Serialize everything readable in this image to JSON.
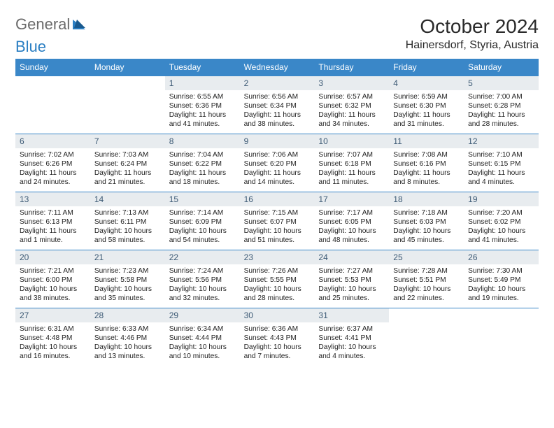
{
  "logo": {
    "general": "General",
    "blue": "Blue"
  },
  "title": "October 2024",
  "location": "Hainersdorf, Styria, Austria",
  "colors": {
    "header_bg": "#3a87c8",
    "header_text": "#ffffff",
    "daynum_bg": "#e8ecef",
    "daynum_text": "#3d5a75",
    "row_border": "#3a87c8",
    "logo_gray": "#6b6b6b",
    "logo_blue": "#2b7fc3"
  },
  "weekdays": [
    "Sunday",
    "Monday",
    "Tuesday",
    "Wednesday",
    "Thursday",
    "Friday",
    "Saturday"
  ],
  "weeks": [
    [
      {
        "day": "",
        "sunrise": "",
        "sunset": "",
        "daylight": ""
      },
      {
        "day": "",
        "sunrise": "",
        "sunset": "",
        "daylight": ""
      },
      {
        "day": "1",
        "sunrise": "Sunrise: 6:55 AM",
        "sunset": "Sunset: 6:36 PM",
        "daylight": "Daylight: 11 hours and 41 minutes."
      },
      {
        "day": "2",
        "sunrise": "Sunrise: 6:56 AM",
        "sunset": "Sunset: 6:34 PM",
        "daylight": "Daylight: 11 hours and 38 minutes."
      },
      {
        "day": "3",
        "sunrise": "Sunrise: 6:57 AM",
        "sunset": "Sunset: 6:32 PM",
        "daylight": "Daylight: 11 hours and 34 minutes."
      },
      {
        "day": "4",
        "sunrise": "Sunrise: 6:59 AM",
        "sunset": "Sunset: 6:30 PM",
        "daylight": "Daylight: 11 hours and 31 minutes."
      },
      {
        "day": "5",
        "sunrise": "Sunrise: 7:00 AM",
        "sunset": "Sunset: 6:28 PM",
        "daylight": "Daylight: 11 hours and 28 minutes."
      }
    ],
    [
      {
        "day": "6",
        "sunrise": "Sunrise: 7:02 AM",
        "sunset": "Sunset: 6:26 PM",
        "daylight": "Daylight: 11 hours and 24 minutes."
      },
      {
        "day": "7",
        "sunrise": "Sunrise: 7:03 AM",
        "sunset": "Sunset: 6:24 PM",
        "daylight": "Daylight: 11 hours and 21 minutes."
      },
      {
        "day": "8",
        "sunrise": "Sunrise: 7:04 AM",
        "sunset": "Sunset: 6:22 PM",
        "daylight": "Daylight: 11 hours and 18 minutes."
      },
      {
        "day": "9",
        "sunrise": "Sunrise: 7:06 AM",
        "sunset": "Sunset: 6:20 PM",
        "daylight": "Daylight: 11 hours and 14 minutes."
      },
      {
        "day": "10",
        "sunrise": "Sunrise: 7:07 AM",
        "sunset": "Sunset: 6:18 PM",
        "daylight": "Daylight: 11 hours and 11 minutes."
      },
      {
        "day": "11",
        "sunrise": "Sunrise: 7:08 AM",
        "sunset": "Sunset: 6:16 PM",
        "daylight": "Daylight: 11 hours and 8 minutes."
      },
      {
        "day": "12",
        "sunrise": "Sunrise: 7:10 AM",
        "sunset": "Sunset: 6:15 PM",
        "daylight": "Daylight: 11 hours and 4 minutes."
      }
    ],
    [
      {
        "day": "13",
        "sunrise": "Sunrise: 7:11 AM",
        "sunset": "Sunset: 6:13 PM",
        "daylight": "Daylight: 11 hours and 1 minute."
      },
      {
        "day": "14",
        "sunrise": "Sunrise: 7:13 AM",
        "sunset": "Sunset: 6:11 PM",
        "daylight": "Daylight: 10 hours and 58 minutes."
      },
      {
        "day": "15",
        "sunrise": "Sunrise: 7:14 AM",
        "sunset": "Sunset: 6:09 PM",
        "daylight": "Daylight: 10 hours and 54 minutes."
      },
      {
        "day": "16",
        "sunrise": "Sunrise: 7:15 AM",
        "sunset": "Sunset: 6:07 PM",
        "daylight": "Daylight: 10 hours and 51 minutes."
      },
      {
        "day": "17",
        "sunrise": "Sunrise: 7:17 AM",
        "sunset": "Sunset: 6:05 PM",
        "daylight": "Daylight: 10 hours and 48 minutes."
      },
      {
        "day": "18",
        "sunrise": "Sunrise: 7:18 AM",
        "sunset": "Sunset: 6:03 PM",
        "daylight": "Daylight: 10 hours and 45 minutes."
      },
      {
        "day": "19",
        "sunrise": "Sunrise: 7:20 AM",
        "sunset": "Sunset: 6:02 PM",
        "daylight": "Daylight: 10 hours and 41 minutes."
      }
    ],
    [
      {
        "day": "20",
        "sunrise": "Sunrise: 7:21 AM",
        "sunset": "Sunset: 6:00 PM",
        "daylight": "Daylight: 10 hours and 38 minutes."
      },
      {
        "day": "21",
        "sunrise": "Sunrise: 7:23 AM",
        "sunset": "Sunset: 5:58 PM",
        "daylight": "Daylight: 10 hours and 35 minutes."
      },
      {
        "day": "22",
        "sunrise": "Sunrise: 7:24 AM",
        "sunset": "Sunset: 5:56 PM",
        "daylight": "Daylight: 10 hours and 32 minutes."
      },
      {
        "day": "23",
        "sunrise": "Sunrise: 7:26 AM",
        "sunset": "Sunset: 5:55 PM",
        "daylight": "Daylight: 10 hours and 28 minutes."
      },
      {
        "day": "24",
        "sunrise": "Sunrise: 7:27 AM",
        "sunset": "Sunset: 5:53 PM",
        "daylight": "Daylight: 10 hours and 25 minutes."
      },
      {
        "day": "25",
        "sunrise": "Sunrise: 7:28 AM",
        "sunset": "Sunset: 5:51 PM",
        "daylight": "Daylight: 10 hours and 22 minutes."
      },
      {
        "day": "26",
        "sunrise": "Sunrise: 7:30 AM",
        "sunset": "Sunset: 5:49 PM",
        "daylight": "Daylight: 10 hours and 19 minutes."
      }
    ],
    [
      {
        "day": "27",
        "sunrise": "Sunrise: 6:31 AM",
        "sunset": "Sunset: 4:48 PM",
        "daylight": "Daylight: 10 hours and 16 minutes."
      },
      {
        "day": "28",
        "sunrise": "Sunrise: 6:33 AM",
        "sunset": "Sunset: 4:46 PM",
        "daylight": "Daylight: 10 hours and 13 minutes."
      },
      {
        "day": "29",
        "sunrise": "Sunrise: 6:34 AM",
        "sunset": "Sunset: 4:44 PM",
        "daylight": "Daylight: 10 hours and 10 minutes."
      },
      {
        "day": "30",
        "sunrise": "Sunrise: 6:36 AM",
        "sunset": "Sunset: 4:43 PM",
        "daylight": "Daylight: 10 hours and 7 minutes."
      },
      {
        "day": "31",
        "sunrise": "Sunrise: 6:37 AM",
        "sunset": "Sunset: 4:41 PM",
        "daylight": "Daylight: 10 hours and 4 minutes."
      },
      {
        "day": "",
        "sunrise": "",
        "sunset": "",
        "daylight": ""
      },
      {
        "day": "",
        "sunrise": "",
        "sunset": "",
        "daylight": ""
      }
    ]
  ]
}
